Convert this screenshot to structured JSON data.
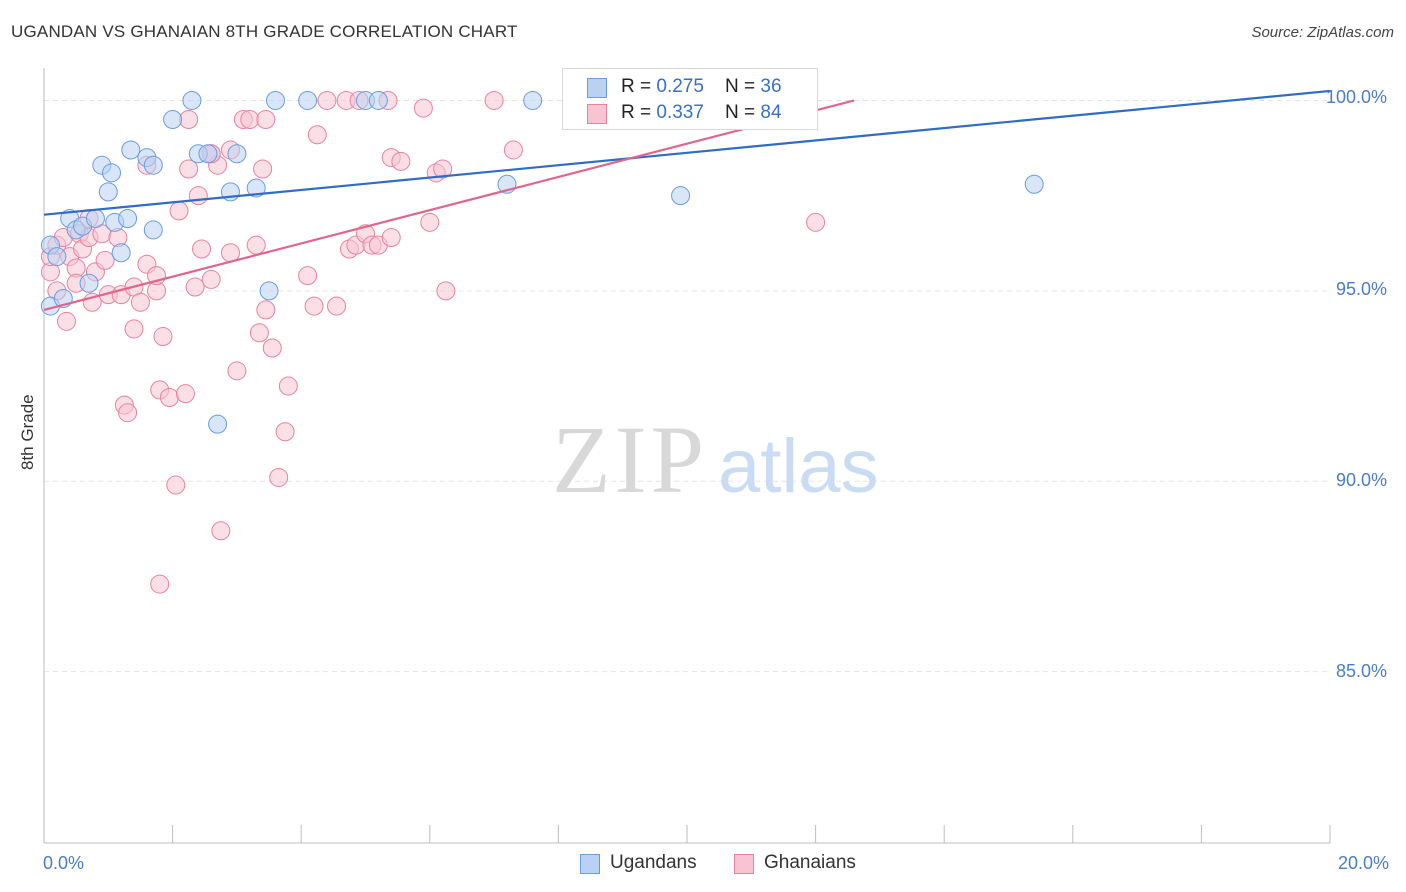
{
  "title": "UGANDAN VS GHANAIAN 8TH GRADE CORRELATION CHART",
  "source": "Source: ZipAtlas.com",
  "watermark": {
    "zip": "ZIP",
    "atlas": "atlas"
  },
  "legend": {
    "rows": [
      {
        "r_label": "R = ",
        "r_value": "0.275",
        "n_label": "N = ",
        "n_value": "36"
      },
      {
        "r_label": "R = ",
        "r_value": "0.337",
        "n_label": "N = ",
        "n_value": "84"
      }
    ]
  },
  "chart_data": {
    "type": "scatter",
    "title": "UGANDAN VS GHANAIAN 8TH GRADE CORRELATION CHART",
    "xlabel": "",
    "ylabel": "8th Grade",
    "xlim": [
      0,
      20
    ],
    "ylim": [
      80.5,
      100.8
    ],
    "x_tick_labels": [
      "0.0%",
      "20.0%"
    ],
    "y_ticks": [
      85,
      90,
      95,
      100
    ],
    "y_tick_labels": [
      "85.0%",
      "90.0%",
      "95.0%",
      "100.0%"
    ],
    "grid": true,
    "legend_position": "top-center",
    "series": [
      {
        "name": "Ugandans",
        "color": "#6a9be0",
        "fill": "#b9d1f3",
        "r": 0.275,
        "n": 36,
        "trend": {
          "x": [
            0,
            20
          ],
          "y": [
            97.0,
            100.25
          ]
        },
        "points": [
          [
            0.1,
            96.2
          ],
          [
            0.1,
            94.6
          ],
          [
            0.3,
            94.8
          ],
          [
            0.4,
            96.9
          ],
          [
            0.5,
            96.6
          ],
          [
            0.6,
            96.7
          ],
          [
            0.7,
            95.2
          ],
          [
            0.8,
            96.9
          ],
          [
            0.9,
            98.3
          ],
          [
            1.0,
            97.6
          ],
          [
            1.05,
            98.1
          ],
          [
            1.1,
            96.8
          ],
          [
            1.2,
            96.0
          ],
          [
            1.3,
            96.9
          ],
          [
            1.35,
            98.7
          ],
          [
            1.6,
            98.5
          ],
          [
            1.7,
            98.3
          ],
          [
            2.0,
            99.5
          ],
          [
            2.3,
            100.0
          ],
          [
            2.4,
            98.6
          ],
          [
            2.55,
            98.6
          ],
          [
            2.7,
            91.5
          ],
          [
            2.9,
            97.6
          ],
          [
            3.0,
            98.6
          ],
          [
            3.3,
            97.7
          ],
          [
            3.5,
            95.0
          ],
          [
            3.6,
            100.0
          ],
          [
            4.1,
            100.0
          ],
          [
            5.0,
            100.0
          ],
          [
            5.2,
            100.0
          ],
          [
            7.2,
            97.8
          ],
          [
            7.6,
            100.0
          ],
          [
            9.9,
            97.5
          ],
          [
            15.4,
            97.8
          ],
          [
            0.2,
            95.9
          ],
          [
            1.7,
            96.6
          ]
        ]
      },
      {
        "name": "Ghanaians",
        "color": "#e8829f",
        "fill": "#f8c4d3",
        "r": 0.337,
        "n": 84,
        "trend": {
          "x": [
            0,
            12.6
          ],
          "y": [
            94.5,
            100.0
          ]
        },
        "points": [
          [
            0.1,
            95.5
          ],
          [
            0.1,
            95.9
          ],
          [
            0.2,
            95.0
          ],
          [
            0.2,
            96.2
          ],
          [
            0.3,
            96.4
          ],
          [
            0.35,
            94.2
          ],
          [
            0.4,
            95.9
          ],
          [
            0.5,
            95.6
          ],
          [
            0.5,
            95.2
          ],
          [
            0.55,
            96.5
          ],
          [
            0.6,
            96.1
          ],
          [
            0.7,
            96.9
          ],
          [
            0.7,
            96.4
          ],
          [
            0.75,
            94.7
          ],
          [
            0.8,
            95.5
          ],
          [
            0.9,
            96.5
          ],
          [
            0.95,
            95.8
          ],
          [
            1.0,
            94.9
          ],
          [
            1.15,
            96.4
          ],
          [
            1.2,
            94.9
          ],
          [
            1.25,
            92.0
          ],
          [
            1.3,
            91.8
          ],
          [
            1.4,
            95.1
          ],
          [
            1.4,
            94.0
          ],
          [
            1.5,
            94.7
          ],
          [
            1.6,
            98.3
          ],
          [
            1.6,
            95.7
          ],
          [
            1.75,
            95.0
          ],
          [
            1.75,
            95.4
          ],
          [
            1.8,
            92.4
          ],
          [
            1.85,
            93.8
          ],
          [
            1.95,
            92.2
          ],
          [
            2.05,
            89.9
          ],
          [
            2.1,
            97.1
          ],
          [
            2.2,
            92.3
          ],
          [
            2.25,
            99.5
          ],
          [
            2.25,
            98.2
          ],
          [
            2.35,
            95.1
          ],
          [
            2.4,
            97.5
          ],
          [
            2.45,
            96.1
          ],
          [
            2.6,
            95.3
          ],
          [
            2.6,
            98.6
          ],
          [
            2.7,
            98.3
          ],
          [
            2.75,
            88.7
          ],
          [
            2.9,
            98.7
          ],
          [
            2.9,
            96.0
          ],
          [
            3.0,
            92.9
          ],
          [
            3.1,
            99.5
          ],
          [
            3.2,
            99.5
          ],
          [
            3.3,
            96.2
          ],
          [
            3.35,
            93.9
          ],
          [
            3.4,
            98.2
          ],
          [
            3.45,
            94.5
          ],
          [
            3.55,
            93.5
          ],
          [
            3.65,
            90.1
          ],
          [
            3.75,
            91.3
          ],
          [
            3.8,
            92.5
          ],
          [
            4.1,
            95.4
          ],
          [
            4.2,
            94.6
          ],
          [
            4.25,
            99.1
          ],
          [
            4.4,
            100.0
          ],
          [
            4.55,
            94.6
          ],
          [
            4.7,
            100.0
          ],
          [
            4.75,
            96.1
          ],
          [
            4.85,
            96.2
          ],
          [
            4.9,
            100.0
          ],
          [
            5.0,
            96.5
          ],
          [
            5.1,
            96.2
          ],
          [
            5.2,
            96.2
          ],
          [
            5.35,
            100.0
          ],
          [
            5.4,
            96.4
          ],
          [
            5.4,
            98.5
          ],
          [
            5.55,
            98.4
          ],
          [
            5.9,
            99.8
          ],
          [
            6.0,
            96.8
          ],
          [
            6.1,
            98.1
          ],
          [
            6.2,
            98.2
          ],
          [
            6.25,
            95.0
          ],
          [
            7.0,
            100.0
          ],
          [
            7.3,
            98.7
          ],
          [
            12.0,
            96.8
          ],
          [
            1.8,
            87.3
          ],
          [
            3.45,
            99.5
          ],
          [
            2.6,
            98.6
          ]
        ]
      }
    ]
  }
}
